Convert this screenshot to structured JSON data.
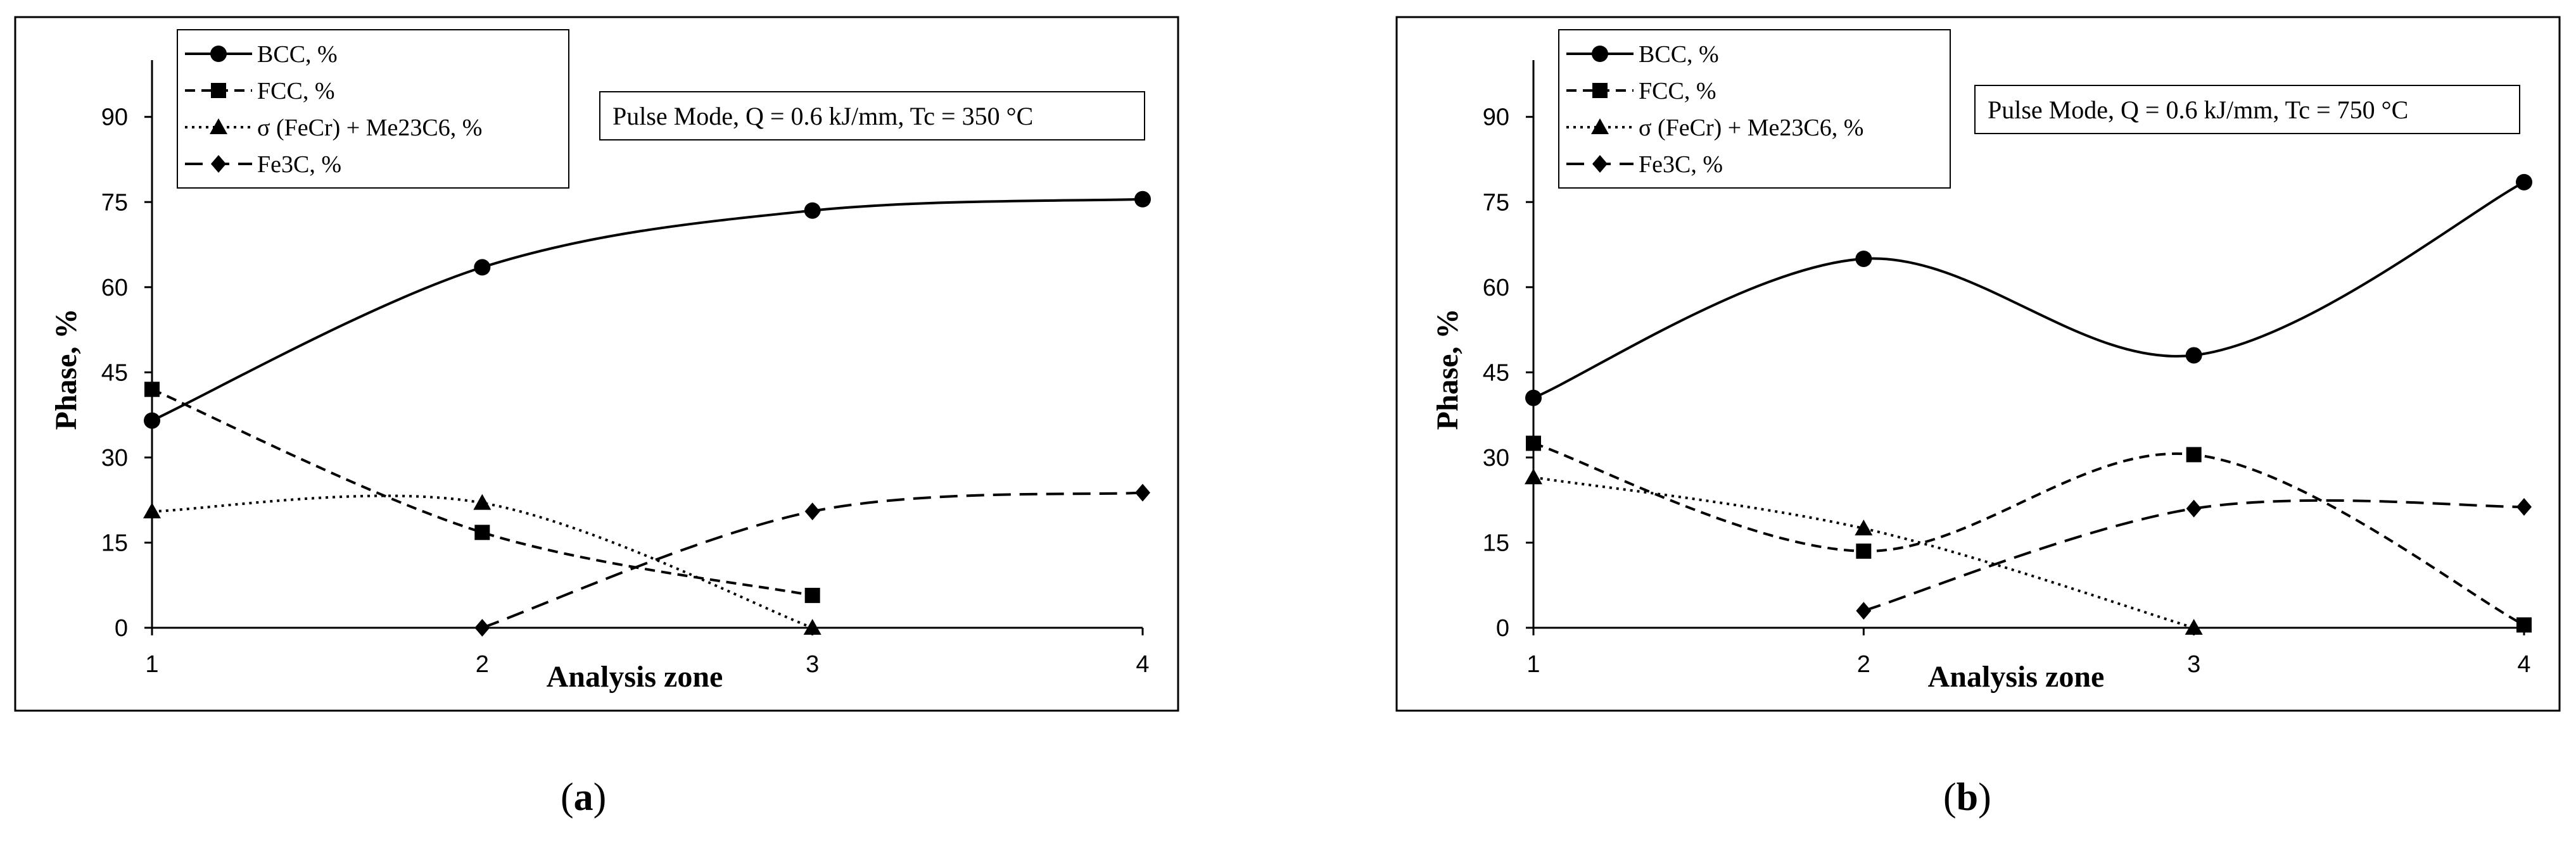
{
  "charts": [
    {
      "id": "a",
      "caption_letter": "a",
      "annotation": "Pulse Mode, Q = 0.6 kJ/mm,  Tc = 350 °C",
      "chart_data": {
        "type": "line",
        "xlabel": "Analysis zone",
        "ylabel": "Phase, %",
        "x_ticks": [
          "1",
          "2",
          "3",
          "4"
        ],
        "y_ticks": [
          "0",
          "15",
          "30",
          "45",
          "60",
          "75",
          "90"
        ],
        "xlim": [
          1,
          4
        ],
        "ylim": [
          0,
          100
        ],
        "legend_position": "top-left",
        "series": [
          {
            "name": "BCC, %",
            "marker": "circle",
            "dash": "solid",
            "x": [
              1,
              2,
              3,
              4
            ],
            "y": [
              36.5,
              63.5,
              73.5,
              75.5
            ]
          },
          {
            "name": "FCC, %",
            "marker": "square",
            "dash": "dashed",
            "x": [
              1,
              2,
              3
            ],
            "y": [
              42,
              16.8,
              5.7
            ]
          },
          {
            "name": "σ (FeCr) + Me23C6, %",
            "marker": "triangle",
            "dash": "dotted",
            "x": [
              1,
              2,
              3
            ],
            "y": [
              20.5,
              22,
              0
            ]
          },
          {
            "name": "Fe3C, %",
            "marker": "diamond",
            "dash": "longdash",
            "x": [
              2,
              3,
              4
            ],
            "y": [
              0,
              20.5,
              23.8
            ]
          }
        ]
      }
    },
    {
      "id": "b",
      "caption_letter": "b",
      "annotation": "Pulse Mode, Q = 0.6 kJ/mm,  Tc = 750 °C",
      "chart_data": {
        "type": "line",
        "xlabel": "Analysis zone",
        "ylabel": "Phase, %",
        "x_ticks": [
          "1",
          "2",
          "3",
          "4"
        ],
        "y_ticks": [
          "0",
          "15",
          "30",
          "45",
          "60",
          "75",
          "90"
        ],
        "xlim": [
          1,
          4
        ],
        "ylim": [
          0,
          100
        ],
        "legend_position": "top-left",
        "series": [
          {
            "name": "BCC, %",
            "marker": "circle",
            "dash": "solid",
            "x": [
              1,
              2,
              3,
              4
            ],
            "y": [
              40.5,
              65,
              48,
              78.5
            ]
          },
          {
            "name": "FCC, %",
            "marker": "square",
            "dash": "dashed",
            "x": [
              1,
              2,
              3,
              4
            ],
            "y": [
              32.5,
              13.5,
              30.5,
              0.5
            ]
          },
          {
            "name": "σ (FeCr) + Me23C6, %",
            "marker": "triangle",
            "dash": "dotted",
            "x": [
              1,
              2,
              3
            ],
            "y": [
              26.5,
              17.5,
              0
            ]
          },
          {
            "name": "Fe3C, %",
            "marker": "diamond",
            "dash": "longdash",
            "x": [
              2,
              3,
              4
            ],
            "y": [
              3,
              21,
              21.3
            ]
          }
        ]
      }
    }
  ]
}
